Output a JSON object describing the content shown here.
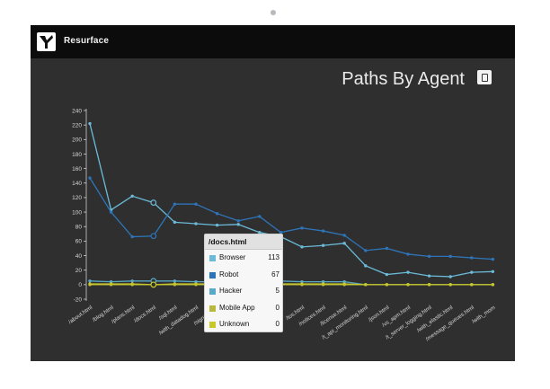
{
  "app": {
    "title": "Resurface",
    "logo_icon": "resurface-logo-icon"
  },
  "page": {
    "title": "Paths By Agent",
    "export_icon": "copy-icon"
  },
  "colors": {
    "screen_bg": "#2f2f2f",
    "browser": "#6bbad8",
    "robot": "#2e74b8",
    "hacker": "#58aac8",
    "mobile_app": "#b8b83a",
    "unknown": "#c8c82a"
  },
  "tooltip": {
    "title": "/docs.html",
    "rows": [
      {
        "label": "Browser",
        "value": "113",
        "color": "#6bbad8"
      },
      {
        "label": "Robot",
        "value": "67",
        "color": "#2e74b8"
      },
      {
        "label": "Hacker",
        "value": "5",
        "color": "#58aac8"
      },
      {
        "label": "Mobile App",
        "value": "0",
        "color": "#b8b83a"
      },
      {
        "label": "Unknown",
        "value": "0",
        "color": "#c8c82a"
      }
    ]
  },
  "chart_data": {
    "type": "line",
    "title": "Paths By Agent",
    "ylim": [
      -20,
      240
    ],
    "yticks": [
      240,
      220,
      200,
      180,
      160,
      140,
      120,
      100,
      80,
      60,
      40,
      20,
      0,
      -20
    ],
    "categories": [
      "/about.html",
      "/blog.html",
      "/plans.html",
      "/docs.html",
      "/sql.html",
      "/with_datadog.html",
      "/signup.html",
      "/compare.html",
      "/privacy.html",
      "/rules.html",
      "/tos.html",
      "/notices.html",
      "/license.html",
      "/t_api_monitoring.html",
      "/json.html",
      "/vs_apm.html",
      "/t_server_logging.html",
      "/with_elastic.html",
      "/message_queues.html",
      "/with_mom"
    ],
    "series": [
      {
        "key": "browser",
        "values": [
          222,
          103,
          122,
          113,
          86,
          84,
          82,
          83,
          72,
          66,
          52,
          54,
          57,
          26,
          14,
          17,
          12,
          11,
          17,
          18
        ]
      },
      {
        "key": "robot",
        "values": [
          147,
          100,
          66,
          67,
          111,
          111,
          98,
          88,
          94,
          72,
          78,
          74,
          68,
          47,
          50,
          42,
          39,
          39,
          37,
          35
        ]
      },
      {
        "key": "hacker",
        "values": [
          5,
          4,
          5,
          5,
          5,
          4,
          4,
          5,
          4,
          5,
          4,
          4,
          4,
          0,
          0,
          0,
          0,
          0,
          0,
          0
        ]
      },
      {
        "key": "mobile_app",
        "values": [
          0,
          0,
          0,
          0,
          0,
          0,
          0,
          0,
          0,
          0,
          0,
          0,
          0,
          0,
          0,
          0,
          0,
          0,
          0,
          0
        ]
      },
      {
        "key": "unknown",
        "values": [
          1,
          1,
          1,
          0,
          1,
          1,
          1,
          1,
          1,
          1,
          1,
          1,
          1,
          0,
          0,
          0,
          0,
          0,
          0,
          0
        ]
      }
    ],
    "highlight_category": "/docs.html"
  }
}
